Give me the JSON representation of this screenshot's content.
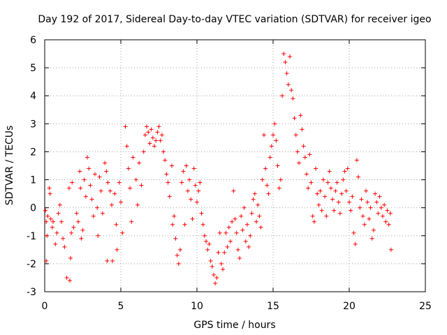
{
  "chart_data": {
    "type": "scatter",
    "title": "Day 192 of 2017, Sidereal Day-to-day VTEC variation (SDTVAR) for receiver igeo",
    "xlabel": "GPS time / hours",
    "ylabel": "SDTVAR / TECUs",
    "xlim": [
      0,
      25
    ],
    "ylim": [
      -3,
      6
    ],
    "xticks": [
      0,
      5,
      10,
      15,
      20,
      25
    ],
    "yticks": [
      -3,
      -2,
      -1,
      0,
      1,
      2,
      3,
      4,
      5,
      6
    ],
    "grid": true,
    "marker": "+",
    "color": "#ff0000",
    "series": [
      {
        "name": "SDTVAR",
        "points": [
          [
            0.05,
            -0.1
          ],
          [
            0.1,
            -0.5
          ],
          [
            0.1,
            -1.9
          ],
          [
            0.15,
            -1.0
          ],
          [
            0.2,
            -0.3
          ],
          [
            0.3,
            0.7
          ],
          [
            0.35,
            0.5
          ],
          [
            0.4,
            -0.4
          ],
          [
            0.5,
            -0.7
          ],
          [
            0.55,
            -0.5
          ],
          [
            0.7,
            -1.3
          ],
          [
            0.8,
            -0.9
          ],
          [
            0.9,
            -0.2
          ],
          [
            1.0,
            0.1
          ],
          [
            1.1,
            -0.5
          ],
          [
            1.2,
            -1.1
          ],
          [
            1.3,
            -1.4
          ],
          [
            1.45,
            -2.5
          ],
          [
            1.6,
            0.7
          ],
          [
            1.65,
            -2.6
          ],
          [
            1.7,
            -1.8
          ],
          [
            1.75,
            -0.9
          ],
          [
            1.8,
            0.9
          ],
          [
            1.9,
            -0.7
          ],
          [
            2.1,
            -0.2
          ],
          [
            2.2,
            -0.5
          ],
          [
            2.3,
            1.3
          ],
          [
            2.35,
            0.7
          ],
          [
            2.4,
            -1.1
          ],
          [
            2.5,
            -0.8
          ],
          [
            2.6,
            1.0
          ],
          [
            2.7,
            0.4
          ],
          [
            2.8,
            1.8
          ],
          [
            2.9,
            1.4
          ],
          [
            3.0,
            0.8
          ],
          [
            3.1,
            0.3
          ],
          [
            3.2,
            -0.3
          ],
          [
            3.3,
            1.2
          ],
          [
            3.45,
            0.0
          ],
          [
            3.5,
            -1.0
          ],
          [
            3.6,
            1.1
          ],
          [
            3.7,
            0.6
          ],
          [
            3.8,
            -0.2
          ],
          [
            3.95,
            1.6
          ],
          [
            4.05,
            1.3
          ],
          [
            4.1,
            -1.9
          ],
          [
            4.15,
            0.9
          ],
          [
            4.3,
            0.6
          ],
          [
            4.4,
            0.1
          ],
          [
            4.45,
            -1.9
          ],
          [
            4.6,
            0.5
          ],
          [
            4.7,
            -0.6
          ],
          [
            4.75,
            -1.5
          ],
          [
            4.9,
            0.9
          ],
          [
            5.0,
            0.2
          ],
          [
            5.1,
            -0.9
          ],
          [
            5.3,
            2.9
          ],
          [
            5.4,
            2.2
          ],
          [
            5.5,
            1.4
          ],
          [
            5.6,
            0.7
          ],
          [
            5.7,
            -0.5
          ],
          [
            5.8,
            1.8
          ],
          [
            6.0,
            1.0
          ],
          [
            6.1,
            0.1
          ],
          [
            6.2,
            1.6
          ],
          [
            6.35,
            0.8
          ],
          [
            6.5,
            2.0
          ],
          [
            6.6,
            2.6
          ],
          [
            6.7,
            2.9
          ],
          [
            6.8,
            2.7
          ],
          [
            6.9,
            2.3
          ],
          [
            7.0,
            2.8
          ],
          [
            7.1,
            2.5
          ],
          [
            7.2,
            2.2
          ],
          [
            7.3,
            2.4
          ],
          [
            7.4,
            2.7
          ],
          [
            7.5,
            2.9
          ],
          [
            7.6,
            2.4
          ],
          [
            7.7,
            2.6
          ],
          [
            7.8,
            2.0
          ],
          [
            7.9,
            1.7
          ],
          [
            8.0,
            1.2
          ],
          [
            8.1,
            0.9
          ],
          [
            8.2,
            0.4
          ],
          [
            8.35,
            1.5
          ],
          [
            8.4,
            -0.6
          ],
          [
            8.5,
            -0.3
          ],
          [
            8.6,
            -1.1
          ],
          [
            8.7,
            -1.7
          ],
          [
            8.8,
            -2.0
          ],
          [
            8.9,
            -1.5
          ],
          [
            9.0,
            0.9
          ],
          [
            9.1,
            1.3
          ],
          [
            9.2,
            -0.6
          ],
          [
            9.3,
            1.5
          ],
          [
            9.4,
            0.6
          ],
          [
            9.5,
            1.0
          ],
          [
            9.6,
            0.3
          ],
          [
            9.7,
            -0.4
          ],
          [
            9.8,
            1.4
          ],
          [
            9.9,
            0.8
          ],
          [
            10.0,
            0.2
          ],
          [
            10.1,
            0.6
          ],
          [
            10.2,
            0.9
          ],
          [
            10.3,
            -0.2
          ],
          [
            10.4,
            -0.6
          ],
          [
            10.5,
            -1.0
          ],
          [
            10.6,
            -1.2
          ],
          [
            10.7,
            -1.5
          ],
          [
            10.8,
            -1.3
          ],
          [
            10.9,
            -1.9
          ],
          [
            11.0,
            -2.1
          ],
          [
            11.1,
            -2.4
          ],
          [
            11.2,
            -2.7
          ],
          [
            11.3,
            -2.5
          ],
          [
            11.4,
            -1.6
          ],
          [
            11.5,
            -0.9
          ],
          [
            11.6,
            -2.0
          ],
          [
            11.7,
            -2.2
          ],
          [
            11.8,
            -1.6
          ],
          [
            11.9,
            -0.9
          ],
          [
            12.0,
            -1.4
          ],
          [
            12.1,
            -0.7
          ],
          [
            12.2,
            -1.2
          ],
          [
            12.3,
            -0.5
          ],
          [
            12.4,
            0.6
          ],
          [
            12.5,
            -0.4
          ],
          [
            12.6,
            -0.9
          ],
          [
            12.7,
            -1.5
          ],
          [
            12.8,
            -1.8
          ],
          [
            12.9,
            -0.3
          ],
          [
            13.0,
            -0.8
          ],
          [
            13.1,
            0.0
          ],
          [
            13.2,
            -1.2
          ],
          [
            13.3,
            -0.6
          ],
          [
            13.4,
            -1.4
          ],
          [
            13.5,
            -1.0
          ],
          [
            13.6,
            -0.2
          ],
          [
            13.7,
            0.3
          ],
          [
            13.8,
            0.5
          ],
          [
            13.9,
            -0.5
          ],
          [
            14.0,
            0.1
          ],
          [
            14.1,
            -0.3
          ],
          [
            14.2,
            -0.7
          ],
          [
            14.3,
            1.0
          ],
          [
            14.4,
            2.6
          ],
          [
            14.5,
            1.4
          ],
          [
            14.6,
            0.8
          ],
          [
            14.7,
            0.5
          ],
          [
            14.8,
            1.8
          ],
          [
            14.9,
            2.2
          ],
          [
            15.0,
            2.6
          ],
          [
            15.1,
            3.0
          ],
          [
            15.2,
            2.4
          ],
          [
            15.3,
            1.5
          ],
          [
            15.4,
            0.7
          ],
          [
            15.5,
            1.0
          ],
          [
            15.6,
            4.0
          ],
          [
            15.7,
            5.5
          ],
          [
            15.8,
            5.2
          ],
          [
            15.9,
            4.8
          ],
          [
            16.0,
            4.4
          ],
          [
            16.1,
            5.4
          ],
          [
            16.2,
            4.2
          ],
          [
            16.3,
            3.9
          ],
          [
            16.4,
            3.2
          ],
          [
            16.5,
            2.6
          ],
          [
            16.6,
            2.0
          ],
          [
            16.7,
            1.6
          ],
          [
            16.8,
            3.3
          ],
          [
            16.9,
            2.8
          ],
          [
            17.0,
            2.2
          ],
          [
            17.1,
            1.8
          ],
          [
            17.2,
            1.2
          ],
          [
            17.3,
            0.7
          ],
          [
            17.4,
            1.9
          ],
          [
            17.5,
            0.9
          ],
          [
            17.6,
            -0.3
          ],
          [
            17.7,
            -0.5
          ],
          [
            17.8,
            1.4
          ],
          [
            17.9,
            0.5
          ],
          [
            18.0,
            0.1
          ],
          [
            18.1,
            0.6
          ],
          [
            18.2,
            -0.1
          ],
          [
            18.3,
            1.0
          ],
          [
            18.4,
            0.4
          ],
          [
            18.5,
            -0.3
          ],
          [
            18.6,
            0.9
          ],
          [
            18.7,
            1.3
          ],
          [
            18.8,
            0.7
          ],
          [
            18.9,
            0.3
          ],
          [
            19.0,
            -0.1
          ],
          [
            19.1,
            0.6
          ],
          [
            19.2,
            0.9
          ],
          [
            19.3,
            0.2
          ],
          [
            19.4,
            -0.2
          ],
          [
            19.5,
            0.5
          ],
          [
            19.6,
            1.0
          ],
          [
            19.7,
            1.3
          ],
          [
            19.8,
            0.6
          ],
          [
            19.9,
            1.4
          ],
          [
            20.0,
            0.2
          ],
          [
            20.1,
            -0.1
          ],
          [
            20.2,
            0.4
          ],
          [
            20.3,
            -0.9
          ],
          [
            20.4,
            -1.3
          ],
          [
            20.5,
            1.7
          ],
          [
            20.6,
            1.1
          ],
          [
            20.7,
            0.0
          ],
          [
            20.8,
            0.3
          ],
          [
            20.9,
            -0.3
          ],
          [
            21.0,
            -0.6
          ],
          [
            21.1,
            0.6
          ],
          [
            21.2,
            0.2
          ],
          [
            21.3,
            -0.4
          ],
          [
            21.4,
            0.0
          ],
          [
            21.5,
            -1.1
          ],
          [
            21.6,
            -0.8
          ],
          [
            21.7,
            0.5
          ],
          [
            21.8,
            0.2
          ],
          [
            21.9,
            -0.2
          ],
          [
            22.0,
            0.4
          ],
          [
            22.1,
            0.0
          ],
          [
            22.2,
            -0.3
          ],
          [
            22.3,
            0.1
          ],
          [
            22.4,
            -0.5
          ],
          [
            22.5,
            -0.1
          ],
          [
            22.6,
            -0.6
          ],
          [
            22.7,
            -0.2
          ],
          [
            22.75,
            -1.5
          ]
        ]
      }
    ]
  }
}
